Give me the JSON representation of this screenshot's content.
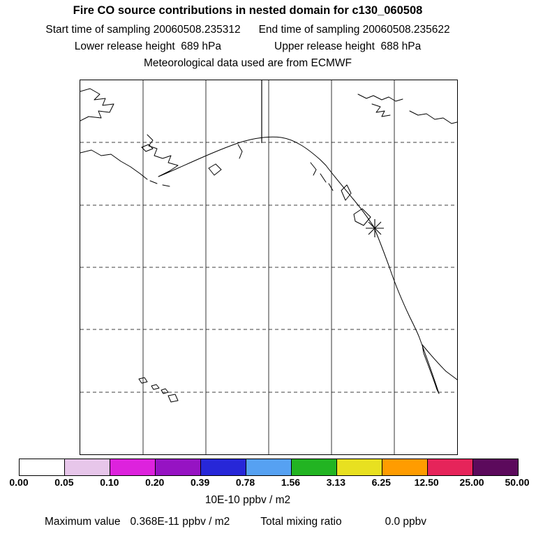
{
  "header": {
    "title": "Fire CO source contributions in nested domain for c130_060508",
    "start_time_label": "Start time of sampling 20060508.235312",
    "end_time_label": "End time of sampling 20060508.235622",
    "lower_release_label": "Lower release height  689 hPa",
    "upper_release_label": "Upper release height  688 hPa",
    "met_data_label": "Meteorological data used are from ECMWF"
  },
  "colorbar": {
    "tick_labels": [
      "0.00",
      "0.05",
      "0.10",
      "0.20",
      "0.39",
      "0.78",
      "1.56",
      "3.13",
      "6.25",
      "12.50",
      "25.00",
      "50.00"
    ],
    "segment_colors": [
      "#ffffff",
      "#e7c6ea",
      "#dd22dd",
      "#9613c3",
      "#2727d8",
      "#56a1f2",
      "#22b422",
      "#e8e020",
      "#ff9c00",
      "#e6245a",
      "#5c0a5c"
    ],
    "units_label": "10E-10 ppbv / m2"
  },
  "footer": {
    "maximum_label": "Maximum value",
    "maximum_value": "0.368E-11 ppbv / m2",
    "total_label": "Total mixing ratio",
    "total_value": "0.0 ppbv"
  },
  "chart_data": {
    "type": "heatmap",
    "title": "Fire CO source contributions in nested domain for c130_060508",
    "description": "Geographic map (North Pacific, Alaska, western North America, Hawaii, Baja California) of fire CO source contributions. The entire field is below the lowest color level (white), so no shaded grid cells appear; only coastlines, a 6x6 lat/lon grid and the receptor asterisk are visible.",
    "colorbar_levels": [
      0.0,
      0.05,
      0.1,
      0.2,
      0.39,
      0.78,
      1.56,
      3.13,
      6.25,
      12.5,
      25.0,
      50.0
    ],
    "colorbar_units": "10E-10 ppbv / m2",
    "legend_position": "bottom",
    "grid": "on",
    "maximum_value": "0.368E-11 ppbv / m2",
    "total_mixing_ratio": "0.0 ppbv",
    "sampling_start": "20060508.235312",
    "sampling_end": "20060508.235622",
    "lower_release_height_hPa": 689,
    "upper_release_height_hPa": 688,
    "meteorological_data": "ECMWF",
    "receptor_marker": {
      "symbol": "asterisk",
      "map_fraction_x": 0.78,
      "map_fraction_y": 0.4
    }
  }
}
